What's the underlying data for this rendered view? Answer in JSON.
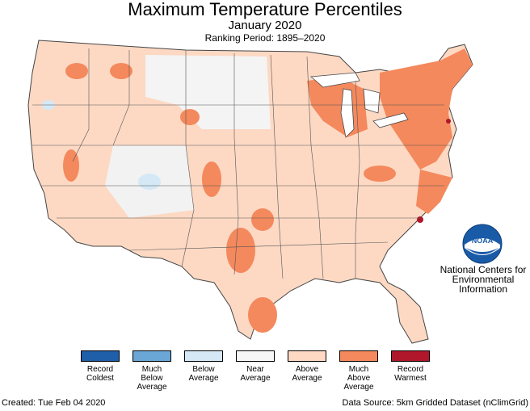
{
  "header": {
    "title": "Maximum Temperature Percentiles",
    "subtitle": "January 2020",
    "period": "Ranking Period: 1895–2020"
  },
  "logo": {
    "text": "NOAA"
  },
  "ncei": {
    "line1": "National Centers for",
    "line2": "Environmental",
    "line3": "Information"
  },
  "legend": [
    {
      "label": "Record\nColdest",
      "color": "#1f5ea8"
    },
    {
      "label": "Much\nBelow\nAverage",
      "color": "#6aa7d6"
    },
    {
      "label": "Below\nAverage",
      "color": "#d4e8f5"
    },
    {
      "label": "Near\nAverage",
      "color": "#f7f7f7"
    },
    {
      "label": "Above\nAverage",
      "color": "#fdd9c4"
    },
    {
      "label": "Much\nAbove\nAverage",
      "color": "#f4895d"
    },
    {
      "label": "Record\nWarmest",
      "color": "#b0172a"
    }
  ],
  "footer": {
    "created": "Created: Tue Feb 04 2020",
    "source": "Data Source: 5km Gridded Dataset (nClimGrid)"
  }
}
